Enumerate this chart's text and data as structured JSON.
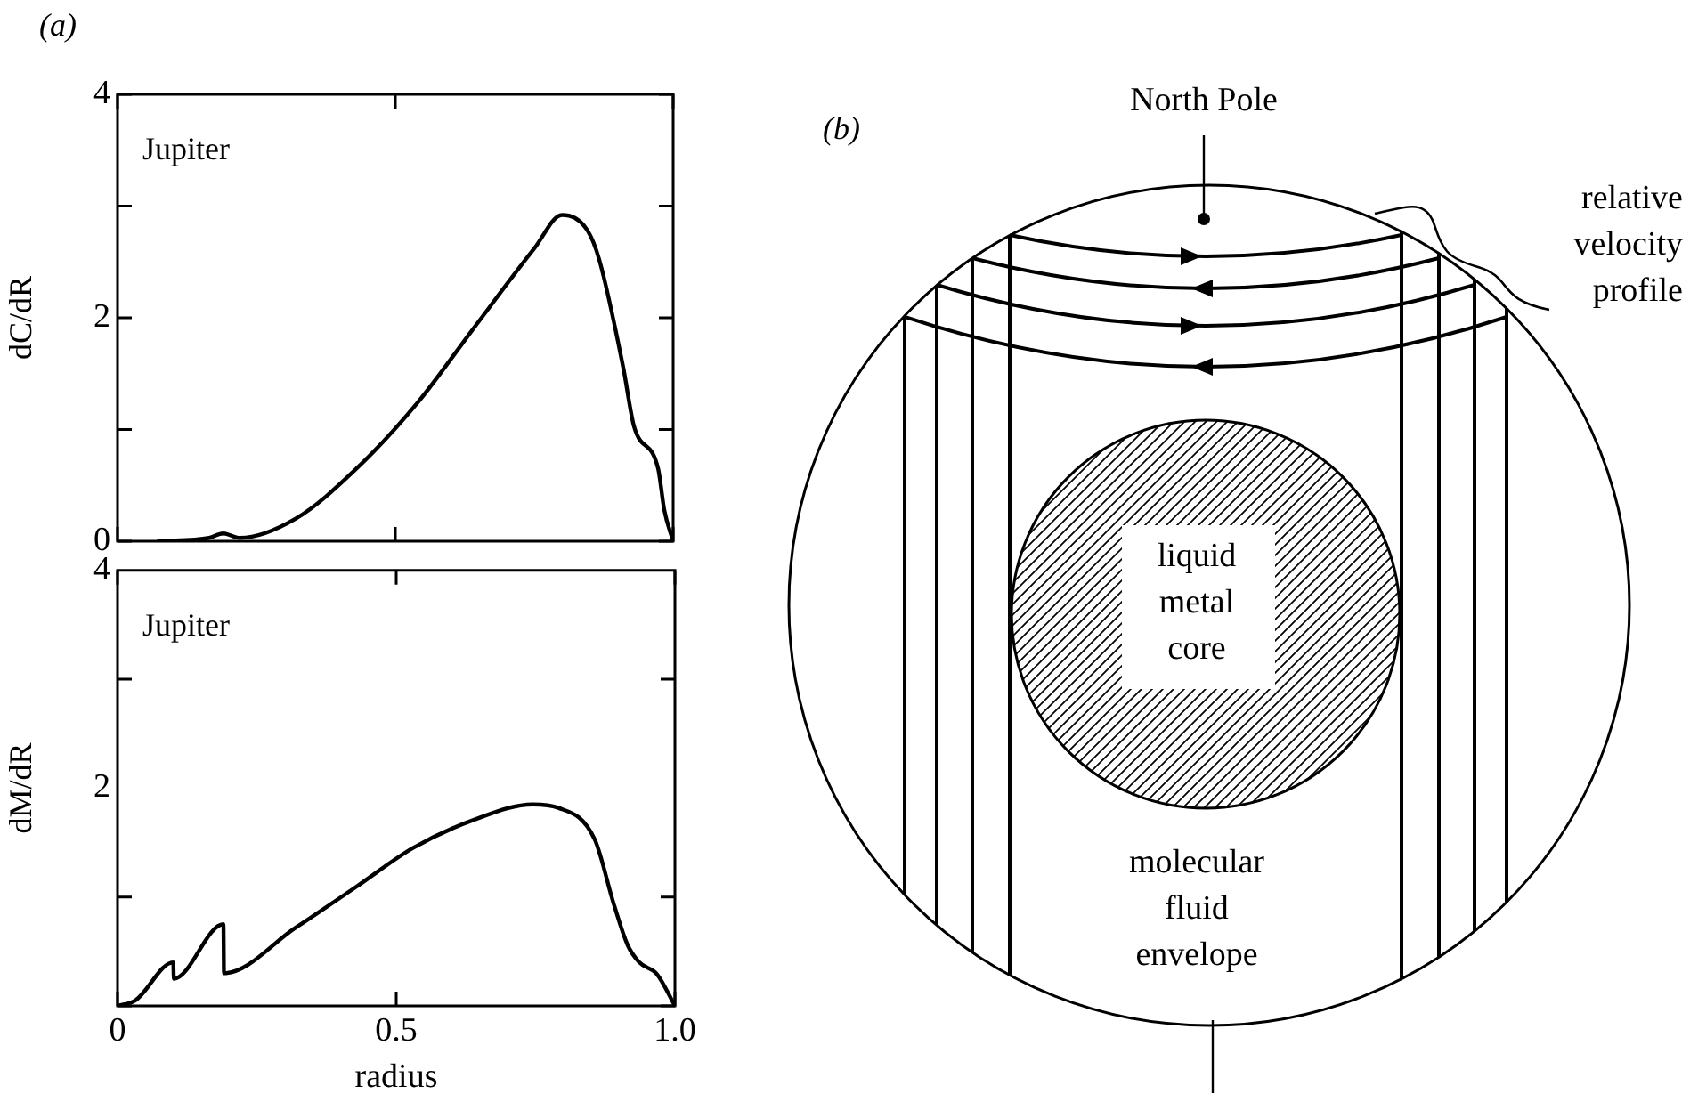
{
  "chart_data": [
    {
      "type": "line",
      "title": "(a)",
      "ylabel": "dC/dR",
      "annotations": [
        "Jupiter"
      ],
      "tick_labels": "y",
      "grid": false,
      "legend": false,
      "marker": "none",
      "line_style": "solid",
      "xlim": [
        0,
        1
      ],
      "xticks": [
        {
          "value": 0,
          "label": null
        },
        {
          "value": 0.5,
          "label": null
        },
        {
          "value": 1,
          "label": null
        }
      ],
      "ylim": [
        0,
        4
      ],
      "yticks": [
        0,
        {
          "value": 1,
          "label": null
        },
        2,
        {
          "value": 3,
          "label": null
        },
        4
      ],
      "series": [
        {
          "color": "#000000",
          "x": [
            0.074,
            0.165,
            0.19,
            0.22,
            0.32,
            0.43,
            0.54,
            0.64,
            0.75,
            0.8,
            0.846,
            0.867,
            0.91,
            0.93,
            0.973,
            0.984,
            1.0
          ],
          "values": [
            0,
            0.03,
            0.07,
            0.03,
            0.2,
            0.65,
            1.24,
            1.9,
            2.62,
            2.92,
            2.78,
            2.52,
            1.56,
            1.02,
            0.65,
            0.28,
            0
          ]
        }
      ]
    },
    {
      "type": "line",
      "ylabel": "dM/dR",
      "xlabel": "radius",
      "annotations": [
        "Jupiter"
      ],
      "grid": false,
      "legend": false,
      "marker": "none",
      "line_style": "solid",
      "xlim": [
        0,
        1
      ],
      "xticks": [
        0,
        0.5,
        {
          "value": 1,
          "label": "1.0"
        }
      ],
      "ylim": [
        0,
        4
      ],
      "yticks": [
        {
          "value": 0,
          "label": null
        },
        {
          "value": 1,
          "label": null
        },
        2,
        {
          "value": 3,
          "label": null
        },
        4
      ],
      "series": [
        {
          "color": "#000000",
          "x": [
            0,
            0.032,
            0.1,
            0.101,
            0.19,
            0.191,
            0.32,
            0.43,
            0.53,
            0.64,
            0.745,
            0.79,
            0.856,
            0.89,
            0.915,
            0.936,
            0.968,
            1.0
          ],
          "values": [
            0,
            0.05,
            0.4,
            0.25,
            0.75,
            0.3,
            0.72,
            1.1,
            1.45,
            1.71,
            1.85,
            1.82,
            1.53,
            0.94,
            0.56,
            0.4,
            0.29,
            0
          ]
        }
      ]
    },
    {
      "type": "other",
      "title": "(b)",
      "annotations": [
        "North Pole",
        "relative velocity profile",
        "liquid metal core",
        "molecular fluid envelope"
      ]
    }
  ]
}
